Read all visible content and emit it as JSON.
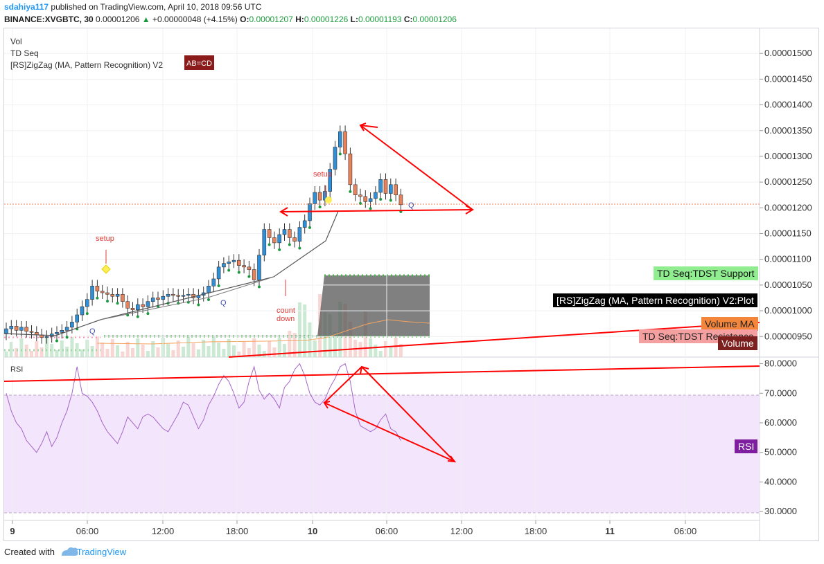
{
  "header": {
    "user": "sdahiya117",
    "published_text": "published on TradingView.com, April 10, 2018 09:56 UTC",
    "symbol": "BINANCE:XVGBTC, 30",
    "price": "0.00001206",
    "change": "+0.00000048 (+4.15%)",
    "o_label": "O:",
    "o_value": "0.00001207",
    "h_label": "H:",
    "h_value": "0.00001226",
    "l_label": "L:",
    "l_value": "0.00001193",
    "c_label": "C:",
    "c_value": "0.00001206"
  },
  "indicators": [
    "Vol",
    "TD Seq",
    "[RS]ZigZag (MA, Pattern Recognition) V2"
  ],
  "pattern_badge": "AB=CD",
  "price_tags": {
    "tdst_support": "TD Seq:TDST Support",
    "zigzag_plot": "[RS]ZigZag (MA, Pattern Recognition) V2:Plot",
    "volume_ma": "Volume MA",
    "tdst_resistance": "TD Seq:TDST Resistance",
    "volume": "Volume",
    "rsi": "RSI"
  },
  "rsi_title": "RSI",
  "annotations": {
    "setup1": "setup",
    "setup2": "setup",
    "countdown1": "count",
    "countdown2": "down",
    "q": "Q"
  },
  "footer": {
    "created_with": "Created with",
    "brand": "TradingView"
  },
  "colors": {
    "up": "#2f8fd8",
    "down": "#e8825a",
    "green_count": "#1a9a3c",
    "red_count": "#e53935",
    "trend": "#ff0000",
    "rsi_band": "#f3e5fb",
    "rsi_line": "#a565c8"
  },
  "chart_data": [
    {
      "type": "candlestick",
      "title": "BINANCE:XVGBTC, 30",
      "price_axis_ticks": [
        "0.00001500",
        "0.00001450",
        "0.00001400",
        "0.00001350",
        "0.00001300",
        "0.00001250",
        "0.00001200",
        "0.00001150",
        "0.00001100",
        "0.00001050",
        "0.00001000",
        "0.00000950"
      ],
      "ylim": [
        9.1e-06,
        1.55e-05
      ],
      "time_axis_ticks": [
        "9",
        "06:00",
        "12:00",
        "18:00",
        "10",
        "06:00",
        "12:00",
        "18:00",
        "11",
        "06:00"
      ],
      "current_price": 1.206e-05,
      "closes": [
        9.65e-06,
        9.7e-06,
        9.62e-06,
        9.68e-06,
        9.6e-06,
        9.58e-06,
        9.53e-06,
        9.48e-06,
        9.5e-06,
        9.55e-06,
        9.58e-06,
        9.62e-06,
        9.68e-06,
        9.78e-06,
        9.92e-06,
        1.008e-05,
        1.022e-05,
        1.048e-05,
        1.038e-05,
        1.035e-05,
        1.032e-05,
        1.028e-05,
        1.032e-05,
        1.018e-05,
        1.005e-05,
        1.002e-05,
        1.012e-05,
        1.008e-05,
        1.018e-05,
        1.025e-05,
        1.022e-05,
        1.028e-05,
        1.032e-05,
        1.03e-05,
        1.028e-05,
        1.03e-05,
        1.032e-05,
        1.025e-05,
        1.03e-05,
        1.035e-05,
        1.048e-05,
        1.062e-05,
        1.085e-05,
        1.092e-05,
        1.095e-05,
        1.098e-05,
        1.088e-05,
        1.085e-05,
        1.08e-05,
        1.06e-05,
        1.108e-05,
        1.158e-05,
        1.142e-05,
        1.132e-05,
        1.148e-05,
        1.158e-05,
        1.142e-05,
        1.135e-05,
        1.162e-05,
        1.175e-05,
        1.208e-05,
        1.23e-05,
        1.215e-05,
        1.232e-05,
        1.275e-05,
        1.318e-05,
        1.348e-05,
        1.305e-05,
        1.245e-05,
        1.225e-05,
        1.222e-05,
        1.212e-05,
        1.218e-05,
        1.23e-05,
        1.255e-05,
        1.228e-05,
        1.245e-05,
        1.225e-05,
        1.206e-05
      ]
    },
    {
      "type": "line",
      "title": "RSI",
      "axis_ticks": [
        "80.0000",
        "70.0000",
        "60.0000",
        "50.0000",
        "40.0000",
        "30.0000"
      ],
      "ylim": [
        27,
        82
      ],
      "band": [
        30,
        70
      ],
      "values": [
        70,
        64,
        60,
        58,
        54,
        52,
        50,
        53,
        57,
        52,
        55,
        60,
        64,
        70,
        79,
        70,
        69,
        67,
        64,
        60,
        57,
        55,
        53,
        57,
        62,
        60,
        58,
        62,
        63,
        62,
        60,
        58,
        57,
        60,
        63,
        67,
        66,
        62,
        58,
        61,
        66,
        69,
        73,
        76,
        74,
        70,
        65,
        67,
        74,
        79,
        71,
        68,
        70,
        68,
        65,
        72,
        74,
        78,
        80,
        76,
        70,
        67,
        66,
        68,
        72,
        75,
        79,
        80,
        74,
        64,
        59,
        58,
        57,
        58,
        61,
        63,
        58,
        57,
        54
      ]
    }
  ]
}
